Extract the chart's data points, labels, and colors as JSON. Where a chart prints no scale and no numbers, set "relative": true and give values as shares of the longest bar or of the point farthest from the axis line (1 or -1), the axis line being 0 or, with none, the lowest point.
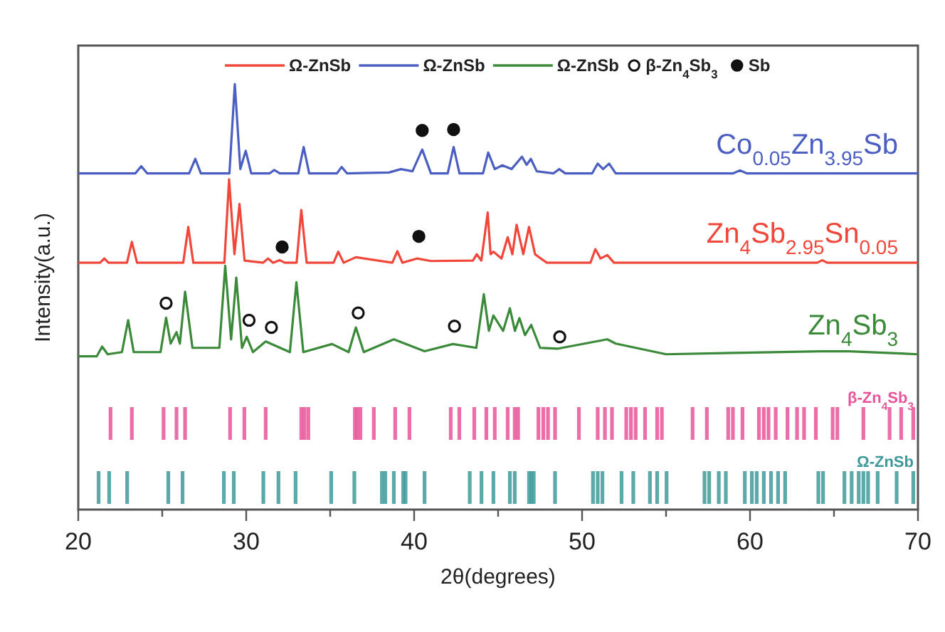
{
  "chart_data": [
    {
      "type": "line",
      "relative": true,
      "xlabel": "2θ(degrees)",
      "ylabel": "Intensity(a.u.)",
      "xlim": [
        20,
        70
      ],
      "xticks": [
        20,
        {
          "value": 25,
          "label": null
        },
        30,
        {
          "value": 35,
          "label": null
        },
        40,
        {
          "value": 45,
          "label": null
        },
        50,
        {
          "value": 55,
          "label": null
        },
        60,
        {
          "value": 65,
          "label": null
        },
        70
      ],
      "legend": "top",
      "series": [
        {
          "name": "Ω-ZnSb",
          "color": "#f0473a",
          "x": [
            20,
            21.3,
            21.55,
            21.8,
            22.9,
            23.19,
            23.5,
            26.25,
            26.55,
            26.85,
            28.7,
            28.98,
            29.3,
            29.6,
            29.9,
            31.0,
            31.3,
            31.6,
            32.0,
            32.3,
            33.0,
            33.28,
            33.6,
            35.2,
            35.48,
            35.8,
            36.53,
            38.7,
            39.0,
            39.3,
            40.17,
            41.0,
            43.5,
            43.73,
            44.0,
            44.38,
            44.55,
            44.72,
            45.2,
            45.57,
            45.85,
            46.1,
            46.5,
            46.84,
            47.2,
            47.54,
            47.9,
            50.5,
            50.79,
            51.1,
            51.5,
            51.9,
            64.0,
            64.3,
            64.6,
            70
          ],
          "values": [
            0.58,
            0.58,
            0.59,
            0.58,
            0.58,
            0.629,
            0.58,
            0.58,
            0.664,
            0.58,
            0.58,
            0.776,
            0.6,
            0.718,
            0.585,
            0.58,
            0.59,
            0.58,
            0.586,
            0.58,
            0.58,
            0.704,
            0.58,
            0.58,
            0.606,
            0.58,
            0.593,
            0.58,
            0.607,
            0.58,
            0.59,
            0.584,
            0.585,
            0.6,
            0.585,
            0.698,
            0.6,
            0.606,
            0.59,
            0.64,
            0.6,
            0.669,
            0.6,
            0.664,
            0.6,
            0.59,
            0.58,
            0.58,
            0.612,
            0.59,
            0.598,
            0.58,
            0.58,
            0.586,
            0.58,
            0.58
          ]
        },
        {
          "name": "Ω-ZnSb",
          "color": "#4a5fc1",
          "x": [
            20,
            21,
            23.4,
            23.75,
            24.1,
            26.6,
            26.97,
            27.3,
            29.0,
            29.32,
            29.65,
            29.97,
            30.3,
            31.4,
            31.67,
            32.0,
            33.1,
            33.42,
            33.75,
            35.4,
            35.68,
            36.0,
            38.5,
            39.21,
            39.9,
            40.48,
            41.0,
            42.0,
            42.35,
            42.7,
            44.1,
            44.41,
            44.8,
            45.25,
            45.8,
            46.42,
            46.7,
            46.95,
            47.3,
            48.3,
            48.64,
            49.0,
            50.6,
            50.93,
            51.25,
            51.61,
            52.0,
            55.0,
            59.0,
            59.4,
            59.8,
            64.0,
            70
          ],
          "values": [
            0.79,
            0.79,
            0.79,
            0.807,
            0.79,
            0.79,
            0.824,
            0.79,
            0.79,
            1.0,
            0.8,
            0.843,
            0.79,
            0.79,
            0.798,
            0.79,
            0.79,
            0.852,
            0.79,
            0.79,
            0.805,
            0.79,
            0.792,
            0.8,
            0.795,
            0.846,
            0.79,
            0.79,
            0.852,
            0.79,
            0.79,
            0.839,
            0.8,
            0.809,
            0.8,
            0.829,
            0.81,
            0.824,
            0.795,
            0.79,
            0.8,
            0.79,
            0.79,
            0.813,
            0.8,
            0.813,
            0.79,
            0.79,
            0.79,
            0.797,
            0.79,
            0.79,
            0.79
          ]
        },
        {
          "name": "Ω-ZnSb",
          "color": "#3a8a3a",
          "x": [
            20,
            21.1,
            21.42,
            21.75,
            22.6,
            22.97,
            23.3,
            24.9,
            25.23,
            25.5,
            25.85,
            26.05,
            26.36,
            26.8,
            28.4,
            28.75,
            29.1,
            29.41,
            29.75,
            30.03,
            30.4,
            31.16,
            32.6,
            32.99,
            33.4,
            35.11,
            36.1,
            36.53,
            37.0,
            38.79,
            40.62,
            42.31,
            43.7,
            44.15,
            44.45,
            44.72,
            45.3,
            45.7,
            46.0,
            46.27,
            46.6,
            46.97,
            47.5,
            48.53,
            51.5,
            52.0,
            55.0,
            64.2,
            65.9,
            70
          ],
          "values": [
            0.36,
            0.36,
            0.383,
            0.365,
            0.37,
            0.445,
            0.37,
            0.37,
            0.451,
            0.39,
            0.417,
            0.39,
            0.512,
            0.38,
            0.38,
            0.573,
            0.4,
            0.545,
            0.38,
            0.406,
            0.37,
            0.395,
            0.37,
            0.534,
            0.37,
            0.389,
            0.37,
            0.428,
            0.37,
            0.4,
            0.372,
            0.389,
            0.38,
            0.506,
            0.42,
            0.456,
            0.42,
            0.473,
            0.42,
            0.45,
            0.41,
            0.434,
            0.38,
            0.378,
            0.4,
            0.39,
            0.365,
            0.372,
            0.372,
            0.365
          ]
        },
        {
          "name": "β-Zn$_{4}$Sb$_{3}$",
          "type": "scatter",
          "marker": "circle",
          "color": "#ffffff",
          "x": [
            25.23,
            30.17,
            31.5,
            36.67,
            42.4,
            48.67
          ],
          "values": [
            0.485,
            0.445,
            0.428,
            0.462,
            0.431,
            0.406
          ]
        },
        {
          "name": "Sb",
          "type": "scatter",
          "marker": "circle",
          "color": "#111111",
          "x": [
            32.14,
            40.28,
            40.48,
            42.35
          ],
          "values": [
            0.617,
            0.642,
            0.891,
            0.893
          ]
        }
      ],
      "annotations": [
        "Co$_{0.05}$Zn$_{3.95}$Sb",
        "Zn$_{4}$Sb$_{2.95}$Sn$_{0.05}$",
        "Zn$_{4}$Sb$_{3}$"
      ]
    },
    {
      "type": "bar",
      "relative": true,
      "xlim": [
        20,
        70
      ],
      "tick_labels": false,
      "series": [
        {
          "name": "β-Zn$_{4}$Sb$_{3}$",
          "color": "#e8559a",
          "x": [
            21.92,
            23.19,
            25.08,
            25.85,
            26.36,
            29.04,
            29.89,
            31.16,
            33.28,
            33.47,
            33.7,
            36.47,
            36.61,
            36.8,
            37.6,
            38.87,
            39.72,
            42.18,
            42.69,
            43.58,
            44.3,
            44.8,
            45.57,
            45.99,
            46.19,
            47.4,
            47.69,
            47.97,
            48.39,
            49.81,
            50.93,
            51.36,
            51.78,
            52.63,
            52.91,
            53.19,
            53.75,
            54.47,
            54.75,
            56.58,
            57.43,
            58.7,
            58.98,
            59.55,
            60.53,
            60.82,
            61.1,
            61.53,
            62.23,
            62.8,
            63.22,
            63.92,
            64.92,
            65.2,
            66.75,
            68.31,
            69.0,
            69.72
          ],
          "values": [
            1,
            1,
            1,
            1,
            1,
            1,
            1,
            1,
            1,
            1,
            1,
            1,
            1,
            1,
            1,
            1,
            1,
            1,
            1,
            1,
            1,
            1,
            1,
            1,
            1,
            1,
            1,
            1,
            1,
            1,
            1,
            1,
            1,
            1,
            1,
            1,
            1,
            1,
            1,
            1,
            1,
            1,
            1,
            1,
            1,
            1,
            1,
            1,
            1,
            1,
            1,
            1,
            1,
            1,
            1,
            1,
            1,
            1
          ]
        }
      ]
    },
    {
      "type": "bar",
      "relative": true,
      "xlim": [
        20,
        70
      ],
      "tick_labels": false,
      "series": [
        {
          "name": "Ω-ZnSb",
          "color": "#3e9a9a",
          "x": [
            21.21,
            21.84,
            22.91,
            25.36,
            26.21,
            28.67,
            29.26,
            31.02,
            31.92,
            32.94,
            35.06,
            36.44,
            38.08,
            38.28,
            38.79,
            39.35,
            39.49,
            40.62,
            43.31,
            44.01,
            44.72,
            45.7,
            45.99,
            46.84,
            46.98,
            47.12,
            48.39,
            50.65,
            50.93,
            51.21,
            52.35,
            53.05,
            54.04,
            54.47,
            55.03,
            57.29,
            57.57,
            58.14,
            58.56,
            59.69,
            60.11,
            60.4,
            60.82,
            61.25,
            61.67,
            62.09,
            64.07,
            64.35,
            65.62,
            66.05,
            66.47,
            66.75,
            67.03,
            67.6,
            68.73,
            69.72
          ],
          "values": [
            1,
            1,
            1,
            1,
            1,
            1,
            1,
            1,
            1,
            1,
            1,
            1,
            1,
            1,
            1,
            1,
            1,
            1,
            1,
            1,
            1,
            1,
            1,
            1,
            1,
            1,
            1,
            1,
            1,
            1,
            1,
            1,
            1,
            1,
            1,
            1,
            1,
            1,
            1,
            1,
            1,
            1,
            1,
            1,
            1,
            1,
            1,
            1,
            1,
            1,
            1,
            1,
            1,
            1,
            1,
            1
          ]
        }
      ]
    }
  ]
}
